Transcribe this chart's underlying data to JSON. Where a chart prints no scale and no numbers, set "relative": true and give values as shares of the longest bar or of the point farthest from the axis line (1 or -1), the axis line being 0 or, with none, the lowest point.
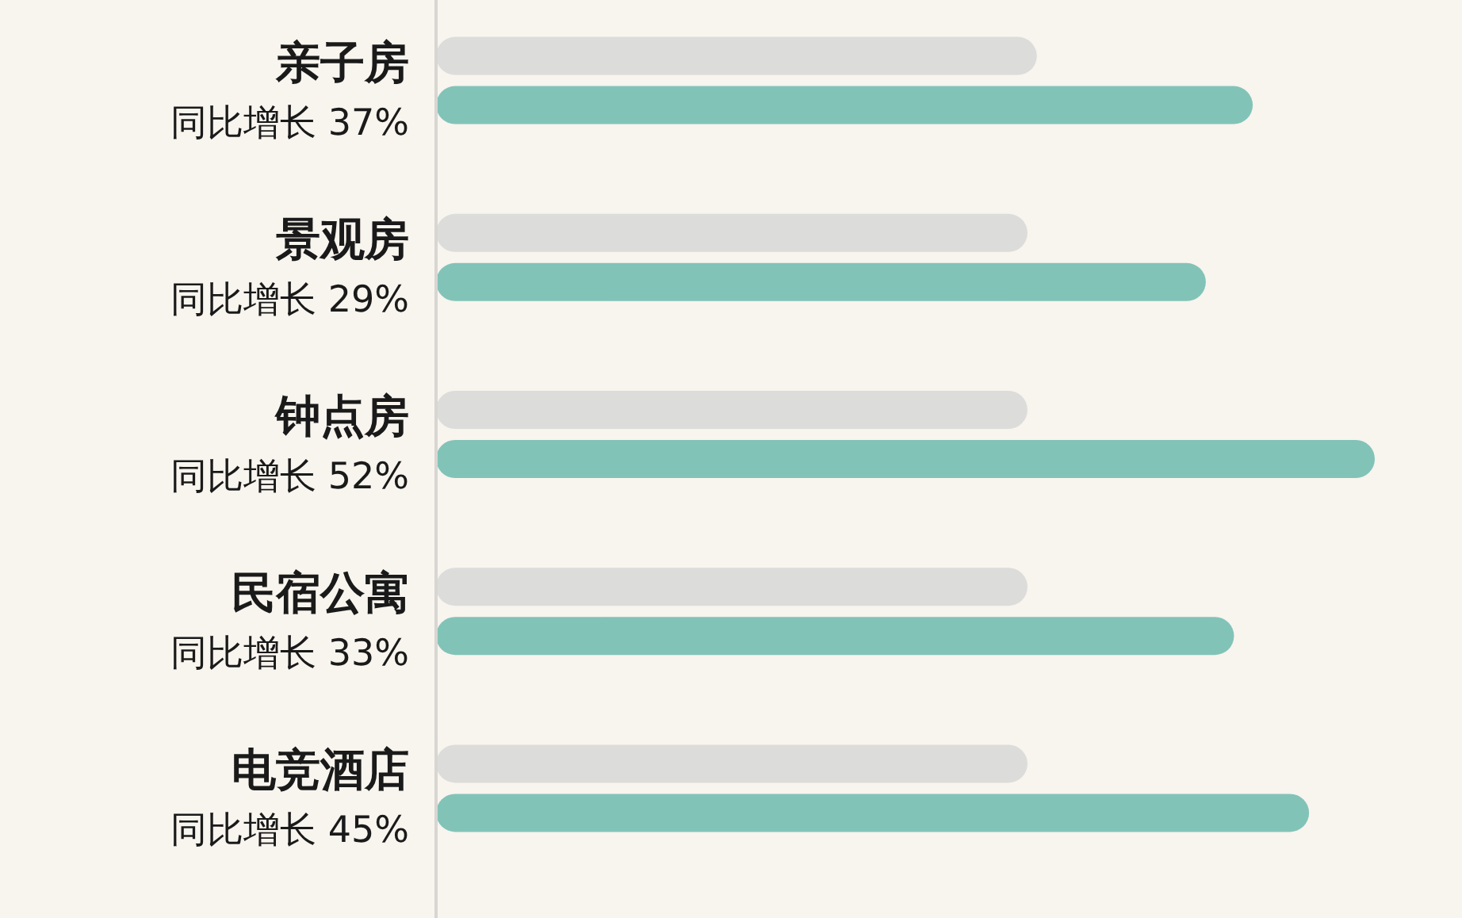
{
  "chart_data": {
    "type": "bar",
    "orientation": "horizontal",
    "relative": true,
    "categories": [
      "亲子房",
      "景观房",
      "钟点房",
      "民宿公寓",
      "电竞酒店"
    ],
    "series": [
      {
        "color": "#dcdcda",
        "values": [
          0.64,
          0.63,
          0.63,
          0.63,
          0.63
        ]
      },
      {
        "color": "#82c3b8",
        "values": [
          0.87,
          0.82,
          1,
          0.85,
          0.93
        ]
      }
    ],
    "annotations": [
      "同比增长 37%",
      "同比增长 29%",
      "同比增长 52%",
      "同比增长 33%",
      "同比增长 45%"
    ]
  }
}
